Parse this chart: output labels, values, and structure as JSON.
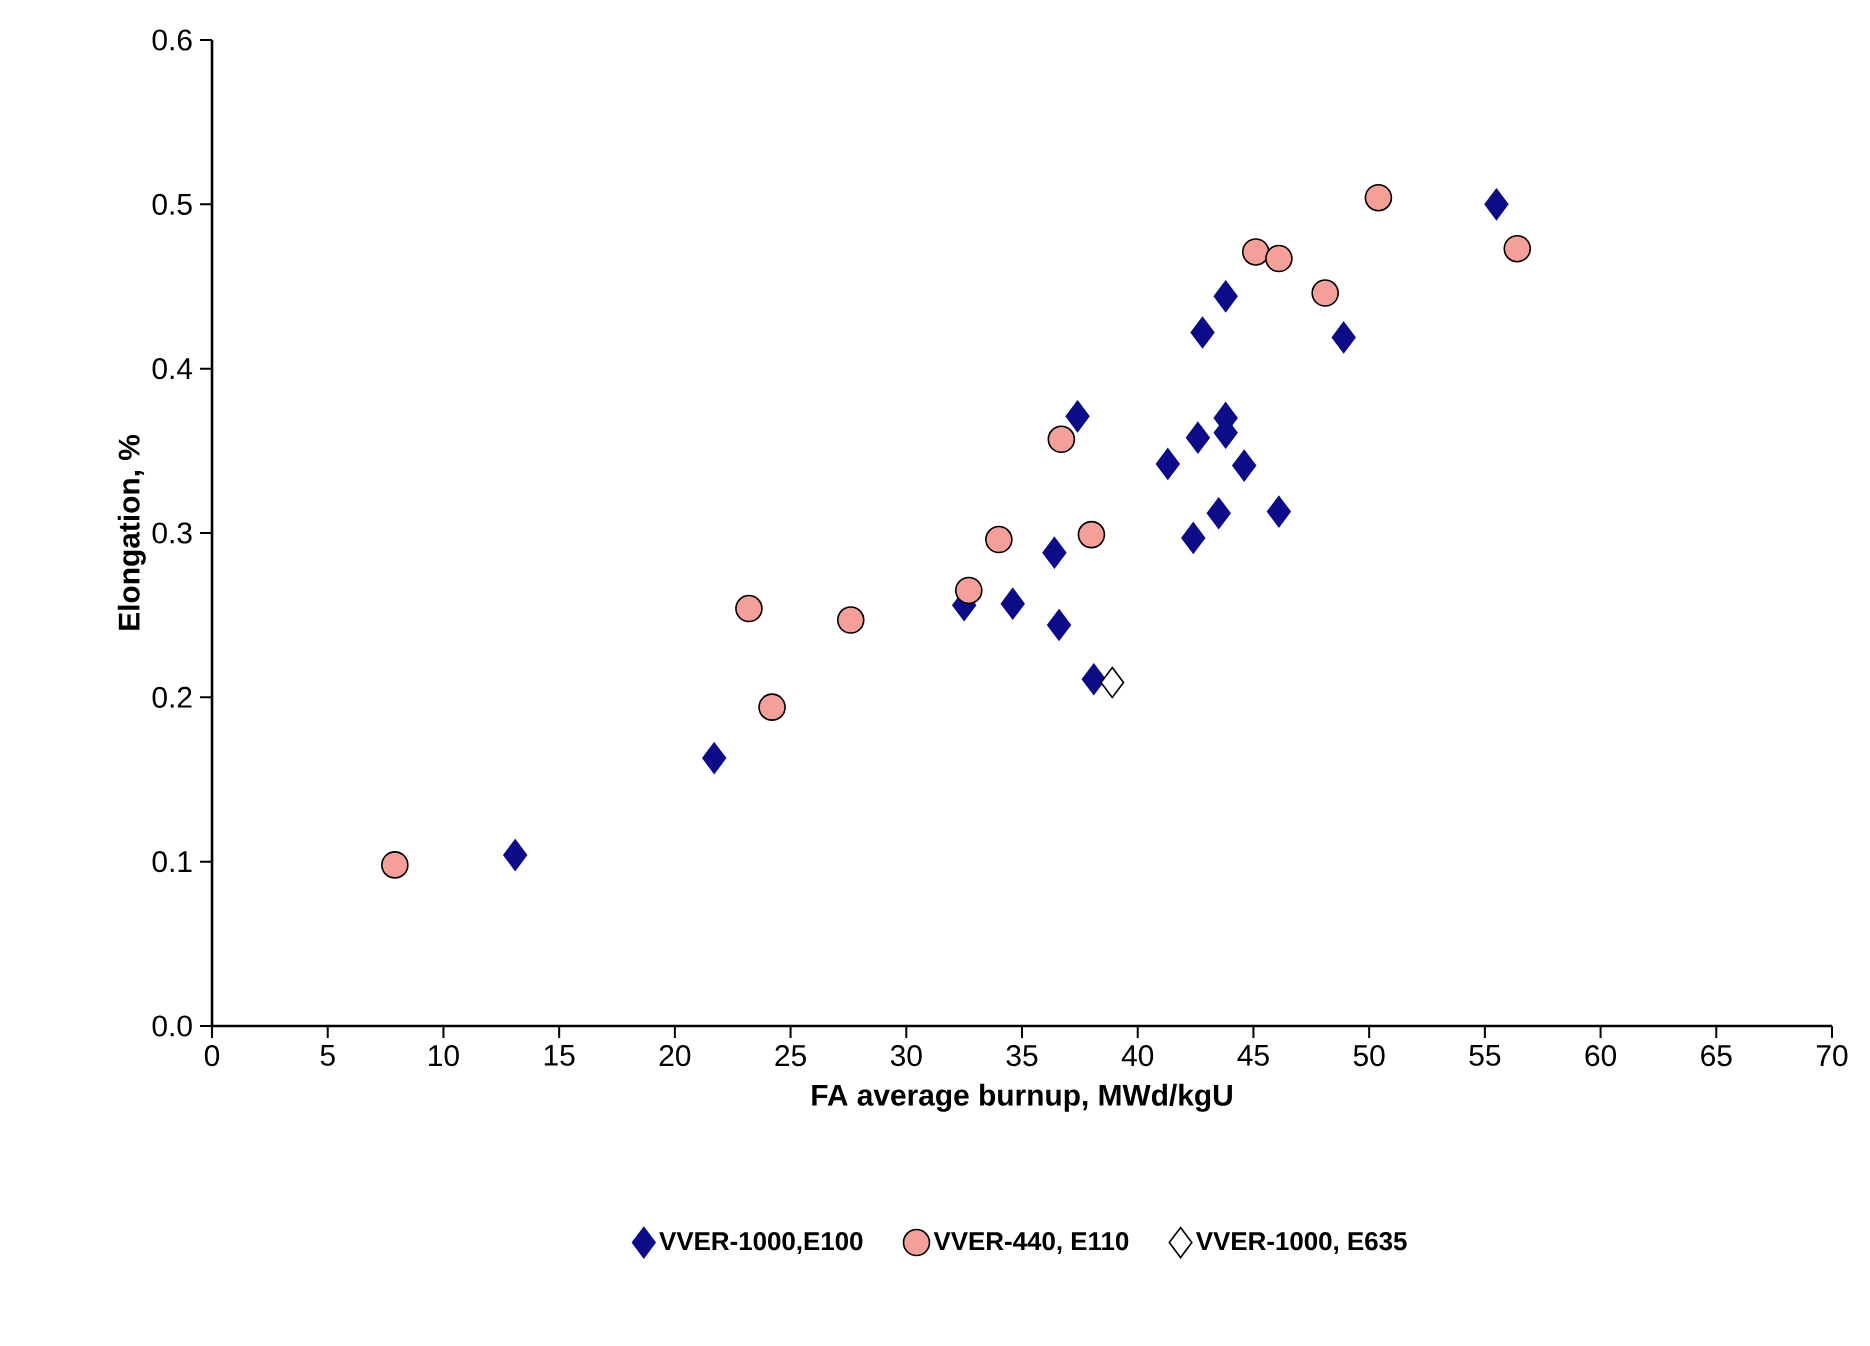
{
  "chart_data": {
    "type": "scatter",
    "xlabel": "FA average burnup, MWd/kgU",
    "ylabel": "Elongation, %",
    "xlim": [
      0,
      70
    ],
    "ylim": [
      0,
      0.6
    ],
    "xticks": [
      0,
      5,
      10,
      15,
      20,
      25,
      30,
      35,
      40,
      45,
      50,
      55,
      60,
      65,
      70
    ],
    "yticks": [
      {
        "value": 0,
        "label": "0.0"
      },
      {
        "value": 0.1,
        "label": "0.1"
      },
      {
        "value": 0.2,
        "label": "0.2"
      },
      {
        "value": 0.3,
        "label": "0.3"
      },
      {
        "value": 0.4,
        "label": "0.4"
      },
      {
        "value": 0.5,
        "label": "0.5"
      },
      {
        "value": 0.6,
        "label": "0.6"
      }
    ],
    "grid": false,
    "legend": "bottom",
    "series": [
      {
        "name": "VVER-1000,E100",
        "color": "#0c0c88",
        "marker": "diamond",
        "x": [
          13.1,
          21.7,
          32.5,
          32.8,
          34.6,
          36.4,
          36.6,
          37.4,
          38.1,
          41.3,
          42.4,
          42.6,
          42.8,
          43.5,
          43.8,
          43.8,
          43.8,
          44.6,
          46.1,
          48.9,
          55.5
        ],
        "values": [
          0.104,
          0.163,
          0.256,
          null,
          0.257,
          0.288,
          0.244,
          0.371,
          0.211,
          0.342,
          0.297,
          0.358,
          0.422,
          0.312,
          0.37,
          0.361,
          0.444,
          0.341,
          0.313,
          0.419,
          0.5
        ]
      },
      {
        "name": "VVER-440, E110",
        "color": "#f4a098",
        "marker": "circle",
        "x": [
          7.9,
          23.2,
          24.2,
          27.6,
          32.7,
          34.0,
          36.7,
          38.0,
          45.1,
          46.1,
          48.1,
          50.4,
          56.4
        ],
        "values": [
          0.098,
          0.254,
          0.194,
          0.247,
          0.265,
          0.296,
          0.357,
          0.299,
          0.471,
          0.467,
          0.446,
          0.504,
          0.473
        ]
      },
      {
        "name": "VVER-1000, E635",
        "color": "#ffffff",
        "marker": "diamond",
        "x": [
          38.9
        ],
        "values": [
          0.209
        ]
      }
    ]
  }
}
